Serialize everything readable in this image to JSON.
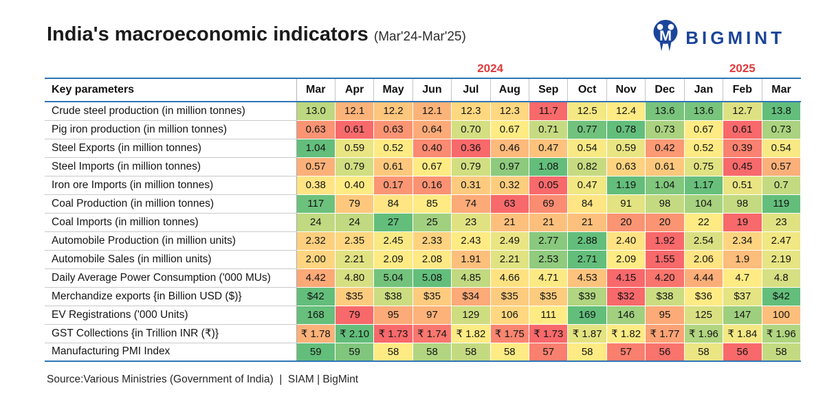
{
  "page": {
    "title": "India's macroeconomic indicators",
    "subtitle": "(Mar'24-Mar'25)",
    "source": "Source:Various Ministries (Government of India)  |  SIAM | BigMint"
  },
  "logo": {
    "text": "BIGMINT",
    "icon": "bigmint-monogram-icon",
    "color": "#1B459A"
  },
  "colors": {
    "scale_min": "#F8696B",
    "scale_mid": "#FFEB84",
    "scale_max": "#63BE7B",
    "year_label": "#DF3B3D",
    "table_border_blue": "#2E74B5"
  },
  "table": {
    "param_header": "Key parameters"
  },
  "chart_data": {
    "type": "heatmap",
    "title": "India's macroeconomic indicators (Mar'24-Mar'25)",
    "legend": "none",
    "colorscale": {
      "low": "#F8696B",
      "mid": "#FFEB84",
      "high": "#63BE7B",
      "midpoint": "row median"
    },
    "x_years": [
      {
        "label": "2024",
        "span": 10
      },
      {
        "label": "2025",
        "span": 3
      }
    ],
    "x_categories": [
      "Mar",
      "Apr",
      "May",
      "Jun",
      "Jul",
      "Aug",
      "Sep",
      "Oct",
      "Nov",
      "Dec",
      "Jan",
      "Feb",
      "Mar"
    ],
    "series": [
      {
        "name": "Crude steel production (in million tonnes)",
        "values": [
          13.0,
          12.1,
          12.2,
          12.1,
          12.3,
          12.3,
          11.7,
          12.5,
          12.4,
          13.6,
          13.6,
          12.7,
          13.8
        ],
        "display": [
          "13.0",
          "12.1",
          "12.2",
          "12.1",
          "12.3",
          "12.3",
          "11.7",
          "12.5",
          "12.4",
          "13.6",
          "13.6",
          "12.7",
          "13.8"
        ]
      },
      {
        "name": "Pig iron production (in million tonnes)",
        "values": [
          0.63,
          0.61,
          0.63,
          0.64,
          0.7,
          0.67,
          0.71,
          0.77,
          0.78,
          0.73,
          0.67,
          0.61,
          0.73
        ],
        "display": [
          "0.63",
          "0.61",
          "0.63",
          "0.64",
          "0.70",
          "0.67",
          "0.71",
          "0.77",
          "0.78",
          "0.73",
          "0.67",
          "0.61",
          "0.73"
        ]
      },
      {
        "name": "Steel Exports (in million tonnes)",
        "values": [
          1.04,
          0.59,
          0.52,
          0.4,
          0.36,
          0.46,
          0.47,
          0.54,
          0.59,
          0.42,
          0.52,
          0.39,
          0.54
        ],
        "display": [
          "1.04",
          "0.59",
          "0.52",
          "0.40",
          "0.36",
          "0.46",
          "0.47",
          "0.54",
          "0.59",
          "0.42",
          "0.52",
          "0.39",
          "0.54"
        ]
      },
      {
        "name": "Steel Imports (in million tonnes)",
        "values": [
          0.57,
          0.79,
          0.61,
          0.67,
          0.79,
          0.97,
          1.08,
          0.82,
          0.63,
          0.61,
          0.75,
          0.45,
          0.57
        ],
        "display": [
          "0.57",
          "0.79",
          "0.61",
          "0.67",
          "0.79",
          "0.97",
          "1.08",
          "0.82",
          "0.63",
          "0.61",
          "0.75",
          "0.45",
          "0.57"
        ]
      },
      {
        "name": "Iron ore Imports (in million tonnes)",
        "values": [
          0.38,
          0.4,
          0.17,
          0.16,
          0.31,
          0.32,
          0.05,
          0.47,
          1.19,
          1.04,
          1.17,
          0.51,
          0.7
        ],
        "display": [
          "0.38",
          "0.40",
          "0.17",
          "0.16",
          "0.31",
          "0.32",
          "0.05",
          "0.47",
          "1.19",
          "1.04",
          "1.17",
          "0.51",
          "0.7"
        ]
      },
      {
        "name": "Coal Production (in million tonnes)",
        "values": [
          117,
          79,
          84,
          85,
          74,
          63,
          69,
          84,
          91,
          98,
          104,
          98,
          119
        ],
        "display": [
          "117",
          "79",
          "84",
          "85",
          "74",
          "63",
          "69",
          "84",
          "91",
          "98",
          "104",
          "98",
          "119"
        ]
      },
      {
        "name": "Coal Imports (in million tonnes)",
        "values": [
          24,
          24,
          27,
          25,
          23,
          21,
          21,
          21,
          20,
          20,
          22,
          19,
          23
        ],
        "display": [
          "24",
          "24",
          "27",
          "25",
          "23",
          "21",
          "21",
          "21",
          "20",
          "20",
          "22",
          "19",
          "23"
        ]
      },
      {
        "name": "Automobile Production (in million units)",
        "values": [
          2.32,
          2.35,
          2.45,
          2.33,
          2.43,
          2.49,
          2.77,
          2.88,
          2.4,
          1.92,
          2.54,
          2.34,
          2.47
        ],
        "display": [
          "2.32",
          "2.35",
          "2.45",
          "2.33",
          "2.43",
          "2.49",
          "2.77",
          "2.88",
          "2.40",
          "1.92",
          "2.54",
          "2.34",
          "2.47"
        ]
      },
      {
        "name": "Automobile Sales (in million units)",
        "values": [
          2.0,
          2.21,
          2.09,
          2.08,
          1.91,
          2.21,
          2.53,
          2.71,
          2.09,
          1.55,
          2.06,
          1.9,
          2.19
        ],
        "display": [
          "2.00",
          "2.21",
          "2.09",
          "2.08",
          "1.91",
          "2.21",
          "2.53",
          "2.71",
          "2.09",
          "1.55",
          "2.06",
          "1.9",
          "2.19"
        ]
      },
      {
        "name": "Daily Average Power Consumption ('000 MUs)",
        "values": [
          4.42,
          4.8,
          5.04,
          5.08,
          4.85,
          4.66,
          4.71,
          4.53,
          4.15,
          4.2,
          4.44,
          4.7,
          4.8
        ],
        "display": [
          "4.42",
          "4.80",
          "5.04",
          "5.08",
          "4.85",
          "4.66",
          "4.71",
          "4.53",
          "4.15",
          "4.20",
          "4.44",
          "4.7",
          "4.8"
        ]
      },
      {
        "name": "Merchandize exports {in Billion USD ($)}",
        "values": [
          42,
          35,
          38,
          35,
          34,
          35,
          35,
          39,
          32,
          38,
          36,
          37,
          42
        ],
        "display": [
          "$42",
          "$35",
          "$38",
          "$35",
          "$34",
          "$35",
          "$35",
          "$39",
          "$32",
          "$38",
          "$36",
          "$37",
          "$42"
        ]
      },
      {
        "name": "EV Registrations ('000 Units)",
        "values": [
          168,
          79,
          95,
          97,
          129,
          106,
          111,
          169,
          146,
          95,
          125,
          147,
          100
        ],
        "display": [
          "168",
          "79",
          "95",
          "97",
          "129",
          "106",
          "111",
          "169",
          "146",
          "95",
          "125",
          "147",
          "100"
        ]
      },
      {
        "name": "GST Collections {in Trillion INR (₹)}",
        "values": [
          1.78,
          2.1,
          1.73,
          1.74,
          1.82,
          1.75,
          1.73,
          1.87,
          1.82,
          1.77,
          1.96,
          1.84,
          1.96
        ],
        "display": [
          "₹ 1.78",
          "₹ 2.10",
          "₹ 1.73",
          "₹ 1.74",
          "₹ 1.82",
          "₹ 1.75",
          "₹ 1.73",
          "₹ 1.87",
          "₹ 1.82",
          "₹ 1.77",
          "₹ 1.96",
          "₹ 1.84",
          "₹ 1.96"
        ]
      },
      {
        "name": "Manufacturing PMI Index",
        "values": [
          59,
          59,
          58,
          58,
          58,
          58,
          57,
          58,
          57,
          56,
          58,
          56,
          58
        ],
        "color_values": [
          59.1,
          58.8,
          57.5,
          58.3,
          58.1,
          57.5,
          56.5,
          57.5,
          56.5,
          56.4,
          57.7,
          56.3,
          58.1
        ],
        "display": [
          "59",
          "59",
          "58",
          "58",
          "58",
          "58",
          "57",
          "58",
          "57",
          "56",
          "58",
          "56",
          "58"
        ]
      }
    ]
  }
}
